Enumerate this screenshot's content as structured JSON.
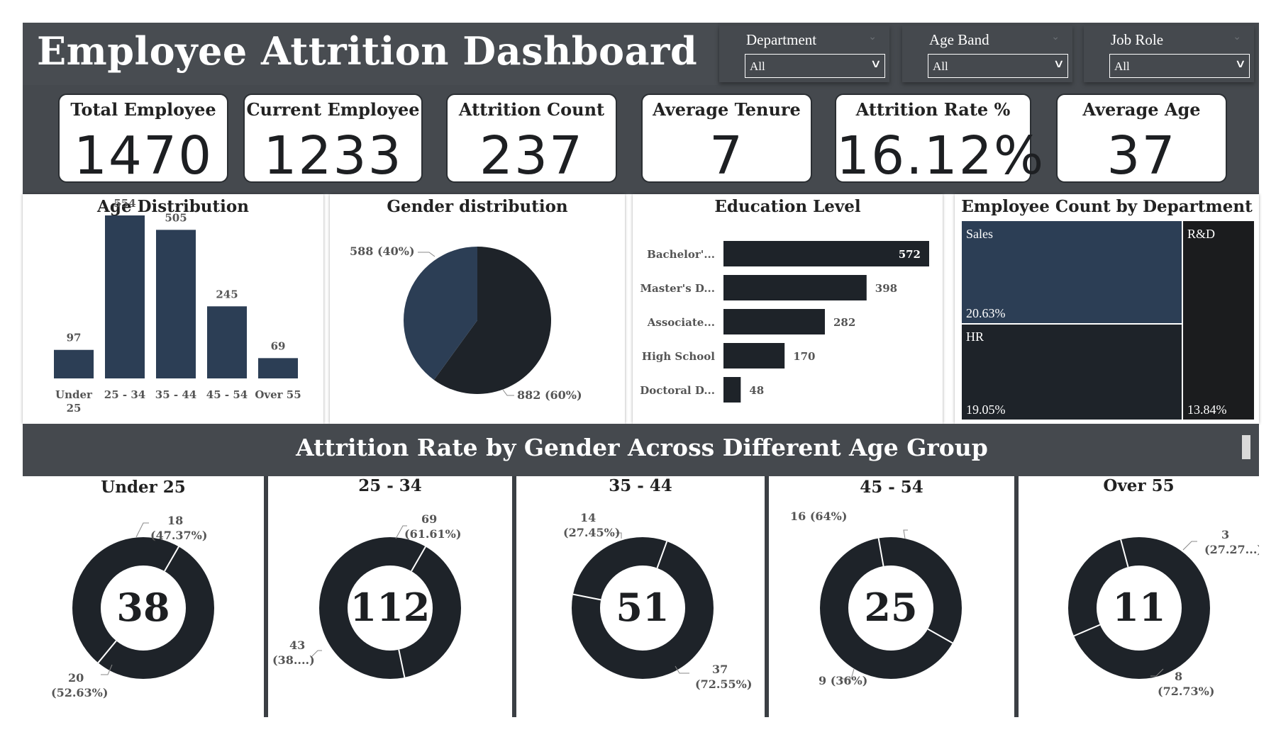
{
  "header": {
    "title": "Employee Attrition Dashboard"
  },
  "slicers": [
    {
      "label": "Department",
      "value": "All"
    },
    {
      "label": "Age Band",
      "value": "All"
    },
    {
      "label": "Job Role",
      "value": "All"
    }
  ],
  "kpis": [
    {
      "label": "Total Employee",
      "value": "1470"
    },
    {
      "label": "Current Employee",
      "value": "1233"
    },
    {
      "label": "Attrition Count",
      "value": "237"
    },
    {
      "label": "Average Tenure",
      "value": "7"
    },
    {
      "label": "Attrition Rate %",
      "value": "16.12%"
    },
    {
      "label": "Average Age",
      "value": "37"
    }
  ],
  "colors": {
    "dark": "#1e2329",
    "navy": "#2c3e55",
    "panel": "#45494e",
    "treemap_rd": "#1b1c1e"
  },
  "section": {
    "title": "Attrition Rate by Gender Across Different Age Group"
  },
  "chart_data": [
    {
      "type": "bar",
      "title": "Age Distribution",
      "categories": [
        "Under 25",
        "25 - 34",
        "35 - 44",
        "45 - 54",
        "Over 55"
      ],
      "values": [
        97,
        554,
        505,
        245,
        69
      ],
      "data_labels": [
        "97",
        "554",
        "505",
        "245",
        "69"
      ],
      "ylim": [
        0,
        554
      ]
    },
    {
      "type": "pie",
      "title": "Gender distribution",
      "slices": [
        {
          "label": "588 (40%)",
          "value": 588
        },
        {
          "label": "882 (60%)",
          "value": 882
        }
      ]
    },
    {
      "type": "bar",
      "orientation": "horizontal",
      "title": "Education Level",
      "categories": [
        "Bachelor'...",
        "Master's D...",
        "Associate...",
        "High School",
        "Doctoral D..."
      ],
      "values": [
        572,
        398,
        282,
        170,
        48
      ],
      "data_labels": [
        "572",
        "398",
        "282",
        "170",
        "48"
      ]
    },
    {
      "type": "treemap",
      "title": "Employee Count by Department",
      "items": [
        {
          "name": "Sales",
          "value_label": "20.63%"
        },
        {
          "name": "HR",
          "value_label": "19.05%"
        },
        {
          "name": "R&D",
          "value_label": "13.84%"
        }
      ]
    },
    {
      "type": "pie",
      "subtype": "donut",
      "title": "Under 25",
      "center": "38",
      "slices": [
        {
          "value": 18,
          "label": [
            "18",
            "(47.37%)"
          ]
        },
        {
          "value": 20,
          "label": [
            "20",
            "(52.63%)"
          ]
        }
      ]
    },
    {
      "type": "pie",
      "subtype": "donut",
      "title": "25 - 34",
      "center": "112",
      "slices": [
        {
          "value": 69,
          "label": [
            "69",
            "(61.61%)"
          ]
        },
        {
          "value": 43,
          "label": [
            "43",
            "(38....)"
          ]
        }
      ]
    },
    {
      "type": "pie",
      "subtype": "donut",
      "title": "35 - 44",
      "center": "51",
      "slices": [
        {
          "value": 14,
          "label": [
            "14",
            "(27.45%)"
          ]
        },
        {
          "value": 37,
          "label": [
            "37",
            "(72.55%)"
          ]
        }
      ]
    },
    {
      "type": "pie",
      "subtype": "donut",
      "title": "45 - 54",
      "center": "25",
      "slices": [
        {
          "value": 16,
          "label": [
            "16 (64%)"
          ]
        },
        {
          "value": 9,
          "label": [
            "9 (36%)"
          ]
        }
      ]
    },
    {
      "type": "pie",
      "subtype": "donut",
      "title": "Over 55",
      "center": "11",
      "slices": [
        {
          "value": 3,
          "label": [
            "3",
            "(27.27...)"
          ]
        },
        {
          "value": 8,
          "label": [
            "8",
            "(72.73%)"
          ]
        }
      ]
    }
  ]
}
